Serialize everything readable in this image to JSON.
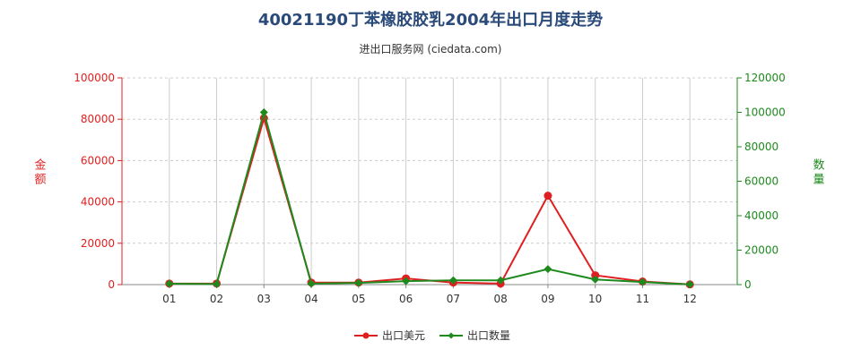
{
  "chart_data": {
    "type": "line",
    "title": "40021190丁苯橡胶胶乳2004年出口月度走势",
    "subtitle": "进出口服务网 (ciedata.com)",
    "categories": [
      "01",
      "02",
      "03",
      "04",
      "05",
      "06",
      "07",
      "08",
      "09",
      "10",
      "11",
      "12"
    ],
    "y_left": {
      "label": "金额",
      "ticks": [
        "100000",
        "80000",
        "60000",
        "40000",
        "20000",
        "0"
      ],
      "ylim": [
        0,
        100000
      ]
    },
    "y_right": {
      "label": "数量",
      "ticks": [
        "120000",
        "100000",
        "80000",
        "60000",
        "40000",
        "20000",
        "0"
      ],
      "ylim": [
        0,
        120000
      ]
    },
    "series": [
      {
        "name": "出口美元",
        "axis": "left",
        "color": "#e02020",
        "values": [
          500,
          500,
          80500,
          1000,
          1000,
          3000,
          1000,
          500,
          43000,
          4500,
          1500,
          100
        ]
      },
      {
        "name": "出口数量",
        "axis": "right",
        "color": "#1e8a1e",
        "values": [
          500,
          300,
          100000,
          500,
          1000,
          2000,
          2500,
          2500,
          9000,
          3000,
          1500,
          100
        ]
      }
    ],
    "grid": true,
    "legend_position": "bottom"
  },
  "colors": {
    "left_axis": "#e02020",
    "right_axis": "#1e8a1e",
    "grid": "#cccccc",
    "title": "#2a4a7a"
  }
}
